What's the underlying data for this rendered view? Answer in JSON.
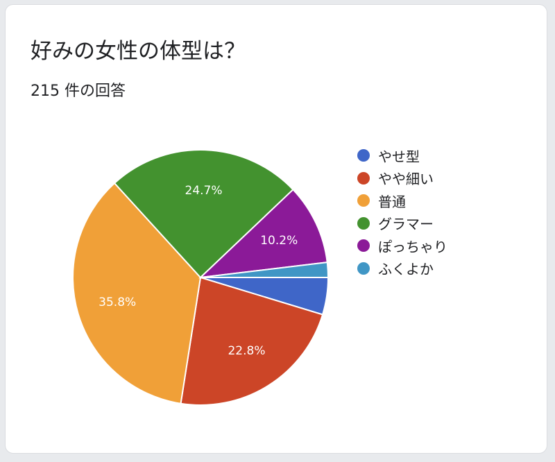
{
  "header": {
    "title": "好みの女性の体型は？",
    "subtitle": "215 件の回答"
  },
  "chart_data": {
    "type": "pie",
    "title": "好みの女性の体型は？",
    "subtitle": "215 件の回答",
    "legend_position": "right",
    "start_angle_deg": 90,
    "direction": "clockwise",
    "categories": [
      "やせ型",
      "やや細い",
      "普通",
      "グラマー",
      "ぽっちゃり",
      "ふくよか"
    ],
    "values": [
      4.7,
      22.8,
      35.8,
      24.7,
      10.2,
      1.9
    ],
    "data_labels": [
      "",
      "22.8%",
      "35.8%",
      "24.7%",
      "10.2%",
      ""
    ],
    "colors": [
      "#3f66c8",
      "#cc4527",
      "#f0a038",
      "#43922f",
      "#8b1a98",
      "#4096c5"
    ]
  }
}
